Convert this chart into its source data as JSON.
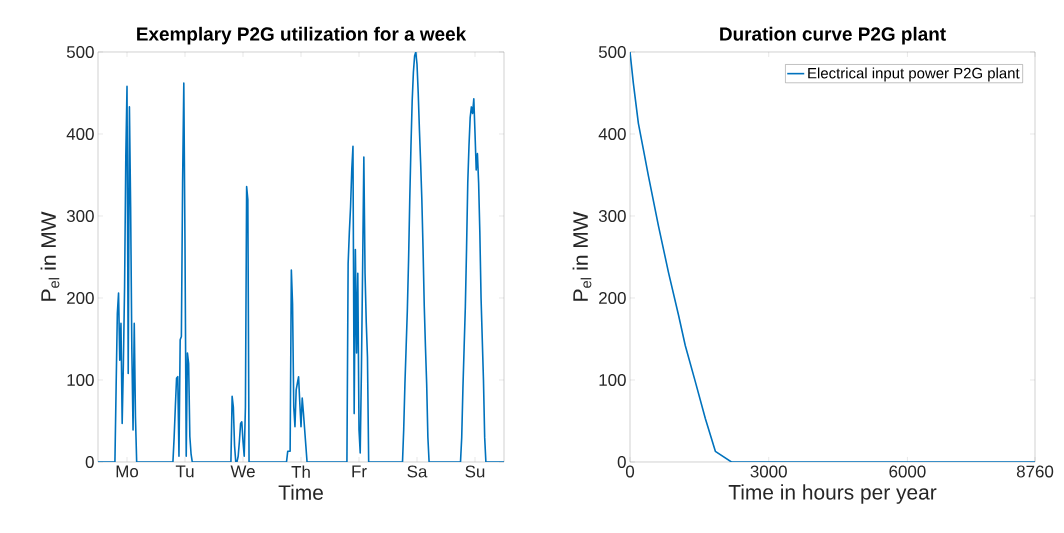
{
  "chart_data": [
    {
      "type": "line",
      "title": "Exemplary P2G utilization for a week",
      "xlabel": "Time",
      "ylabel": "P$_{el}$ in MW",
      "ylim": [
        0,
        500
      ],
      "yticks": [
        0,
        100,
        200,
        300,
        400,
        500
      ],
      "marker": "none",
      "line_style": "solid",
      "categories": [
        null,
        null,
        null,
        null,
        null,
        null,
        null,
        null,
        null,
        null,
        null,
        null,
        null,
        null,
        null,
        null,
        null,
        null,
        null,
        null,
        null,
        null,
        null,
        null,
        "Mo",
        null,
        null,
        null,
        null,
        null,
        null,
        null,
        null,
        null,
        null,
        null,
        null,
        null,
        null,
        null,
        null,
        null,
        null,
        null,
        null,
        null,
        null,
        null,
        null,
        null,
        null,
        null,
        null,
        null,
        null,
        null,
        null,
        null,
        null,
        null,
        null,
        null,
        null,
        null,
        null,
        null,
        null,
        null,
        null,
        null,
        null,
        null,
        "Tu",
        null,
        null,
        null,
        null,
        null,
        null,
        null,
        null,
        null,
        null,
        null,
        null,
        null,
        null,
        null,
        null,
        null,
        null,
        null,
        null,
        null,
        null,
        null,
        null,
        null,
        null,
        null,
        null,
        null,
        null,
        null,
        null,
        null,
        null,
        null,
        null,
        null,
        null,
        null,
        null,
        null,
        null,
        null,
        null,
        null,
        null,
        null,
        "We",
        null,
        null,
        null,
        null,
        null,
        null,
        null,
        null,
        null,
        null,
        null,
        null,
        null,
        null,
        null,
        null,
        null,
        null,
        null,
        null,
        null,
        null,
        null,
        null,
        null,
        null,
        null,
        null,
        null,
        null,
        null,
        null,
        null,
        null,
        null,
        null,
        null,
        null,
        null,
        null,
        null,
        null,
        null,
        null,
        null,
        null,
        null,
        "Th",
        null,
        null,
        null,
        null,
        null,
        null,
        null,
        null,
        null,
        null,
        null,
        null,
        null,
        null,
        null,
        null,
        null,
        null,
        null,
        null,
        null,
        null,
        null,
        null,
        null,
        null,
        null,
        null,
        null,
        null,
        null,
        null,
        null,
        null,
        null,
        null,
        null,
        null,
        null,
        null,
        null,
        null,
        null,
        null,
        null,
        null,
        null,
        "Fr",
        null,
        null,
        null,
        null,
        null,
        null,
        null,
        null,
        null,
        null,
        null,
        null,
        null,
        null,
        null,
        null,
        null,
        null,
        null,
        null,
        null,
        null,
        null,
        null,
        null,
        null,
        null,
        null,
        null,
        null,
        null,
        null,
        null,
        null,
        null,
        null,
        null,
        null,
        null,
        null,
        null,
        null,
        null,
        null,
        null,
        null,
        null,
        "Sa",
        null,
        null,
        null,
        null,
        null,
        null,
        null,
        null,
        null,
        null,
        null,
        null,
        null,
        null,
        null,
        null,
        null,
        null,
        null,
        null,
        null,
        null,
        null,
        null,
        null,
        null,
        null,
        null,
        null,
        null,
        null,
        null,
        null,
        null,
        null,
        null,
        null,
        null,
        null,
        null,
        null,
        null,
        null,
        null,
        null,
        null,
        null,
        "Su",
        null,
        null,
        null,
        null,
        null,
        null,
        null,
        null,
        null,
        null,
        null,
        null,
        null,
        null,
        null,
        null,
        null,
        null,
        null,
        null,
        null,
        null,
        null,
        null
      ],
      "series": [
        {
          "color": "#0072bd",
          "values": [
            0,
            0,
            0,
            0,
            0,
            0,
            0,
            0,
            0,
            0,
            0,
            0,
            0,
            0,
            0,
            92,
            181,
            206,
            124,
            169,
            47,
            120,
            214,
            372,
            458,
            108,
            433,
            311,
            137,
            39,
            169,
            55,
            0,
            0,
            0,
            0,
            0,
            0,
            0,
            0,
            0,
            0,
            0,
            0,
            0,
            0,
            0,
            0,
            0,
            0,
            0,
            0,
            0,
            0,
            0,
            0,
            0,
            0,
            0,
            0,
            0,
            0,
            0,
            30,
            67,
            102,
            104,
            7,
            149,
            153,
            340,
            462,
            263,
            7,
            133,
            120,
            31,
            10,
            0,
            0,
            0,
            0,
            0,
            0,
            0,
            0,
            0,
            0,
            0,
            0,
            0,
            0,
            0,
            0,
            0,
            0,
            0,
            0,
            0,
            0,
            0,
            0,
            0,
            0,
            0,
            0,
            0,
            0,
            0,
            0,
            0,
            80,
            67,
            20,
            0,
            0,
            7,
            25,
            47,
            49,
            25,
            7,
            67,
            336,
            320,
            0,
            0,
            0,
            0,
            0,
            0,
            0,
            0,
            0,
            0,
            0,
            0,
            0,
            0,
            0,
            0,
            0,
            0,
            0,
            0,
            0,
            0,
            0,
            0,
            0,
            0,
            0,
            0,
            0,
            0,
            0,
            0,
            13,
            13,
            13,
            234,
            193,
            67,
            43,
            88,
            96,
            104,
            72,
            43,
            78,
            60,
            40,
            20,
            0,
            0,
            0,
            0,
            0,
            0,
            0,
            0,
            0,
            0,
            0,
            0,
            0,
            0,
            0,
            0,
            0,
            0,
            0,
            0,
            0,
            0,
            0,
            0,
            0,
            0,
            0,
            0,
            0,
            0,
            0,
            0,
            0,
            0,
            242,
            280,
            311,
            356,
            385,
            59,
            259,
            133,
            230,
            39,
            11,
            112,
            238,
            372,
            230,
            170,
            128,
            0,
            0,
            0,
            0,
            0,
            0,
            0,
            0,
            0,
            0,
            0,
            0,
            0,
            0,
            0,
            0,
            0,
            0,
            0,
            0,
            0,
            0,
            0,
            0,
            0,
            0,
            0,
            0,
            0,
            40,
            95,
            140,
            185,
            245,
            320,
            385,
            440,
            475,
            495,
            500,
            485,
            450,
            405,
            365,
            320,
            260,
            190,
            140,
            95,
            30,
            0,
            0,
            0,
            0,
            0,
            0,
            0,
            0,
            0,
            0,
            0,
            0,
            0,
            0,
            0,
            0,
            0,
            0,
            0,
            0,
            0,
            0,
            0,
            0,
            0,
            0,
            0,
            30,
            90,
            140,
            189,
            260,
            340,
            385,
            420,
            433,
            425,
            443,
            401,
            356,
            376,
            340,
            280,
            200,
            150,
            100,
            30,
            0,
            0,
            0,
            0,
            0,
            0,
            0,
            0,
            0,
            0,
            0,
            0,
            0,
            0,
            0,
            0
          ]
        }
      ]
    },
    {
      "type": "line",
      "title": "Duration curve P2G plant",
      "xlabel": "Time in hours per year",
      "ylabel": "P$_{el}$ in MW",
      "xlim": [
        0,
        8760
      ],
      "ylim": [
        0,
        500
      ],
      "xticks": [
        0,
        3000,
        6000,
        8760
      ],
      "yticks": [
        0,
        100,
        200,
        300,
        400,
        500
      ],
      "legend": "top right",
      "marker": "none",
      "line_style": "solid",
      "series": [
        {
          "name": "Electrical input power P2G plant",
          "color": "#0072bd",
          "x": [
            0,
            72,
            181,
            290,
            398,
            615,
            833,
            1050,
            1195,
            1412,
            1629,
            1846,
            2194,
            8760
          ],
          "values": [
            500,
            462,
            413,
            381,
            349,
            288,
            231,
            179,
            142,
            98,
            53,
            13,
            0,
            0
          ]
        }
      ]
    }
  ]
}
